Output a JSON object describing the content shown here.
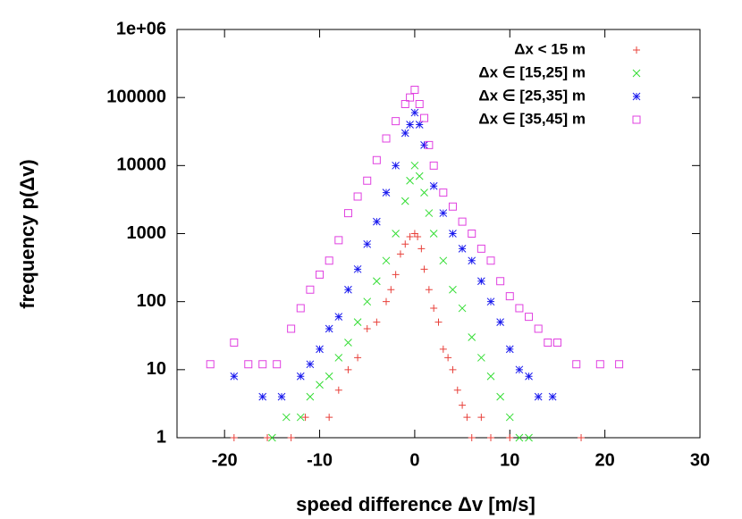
{
  "chart_data": {
    "type": "scatter",
    "x_label": "speed difference Δv [m/s]",
    "y_label": "frequency p(Δv)",
    "log_y": true,
    "legend": "top-right",
    "xlim": [
      -25,
      30
    ],
    "xticks": [
      -20,
      -10,
      0,
      10,
      20,
      30
    ],
    "ylim": [
      1,
      1000000
    ],
    "yticks": [
      1,
      10,
      100,
      1000,
      10000,
      100000,
      {
        "value": 1000000,
        "label": "1e+06"
      }
    ],
    "series": [
      {
        "name": "Δx < 15 m",
        "color": "#e8403a",
        "marker": "plus",
        "x": [
          -19,
          -15.5,
          -13,
          -11.5,
          -9,
          -8,
          -7,
          -6,
          -5,
          -4,
          -3,
          -2.5,
          -2,
          -1.5,
          -1,
          -0.5,
          0,
          0.3,
          0.7,
          1,
          1.5,
          2,
          2.5,
          3,
          3.5,
          4,
          4.5,
          5,
          5.5,
          6,
          7,
          8,
          10,
          17.5
        ],
        "values": [
          1,
          1,
          1,
          2,
          2,
          5,
          10,
          15,
          40,
          50,
          100,
          150,
          250,
          500,
          700,
          900,
          1000,
          900,
          600,
          300,
          150,
          80,
          50,
          20,
          15,
          10,
          5,
          3,
          2,
          1,
          2,
          1,
          1,
          1
        ]
      },
      {
        "name": "Δx ∈ [15,25] m",
        "color": "#33dd33",
        "marker": "cross",
        "x": [
          -15,
          -13.5,
          -12,
          -11,
          -10,
          -9,
          -8,
          -7,
          -6,
          -5,
          -4,
          -3,
          -2,
          -1,
          -0.5,
          0,
          0.5,
          1,
          1.5,
          2,
          3,
          4,
          5,
          6,
          7,
          8,
          9,
          10,
          11,
          12
        ],
        "values": [
          1,
          2,
          2,
          4,
          6,
          8,
          15,
          25,
          50,
          100,
          200,
          400,
          1000,
          3000,
          6000,
          10000,
          7000,
          4000,
          2000,
          1000,
          400,
          150,
          80,
          30,
          15,
          8,
          4,
          2,
          1,
          1
        ]
      },
      {
        "name": "Δx ∈ [25,35] m",
        "color": "#1a1aee",
        "marker": "star",
        "x": [
          -19,
          -16,
          -14,
          -12,
          -11,
          -10,
          -9,
          -8,
          -7,
          -6,
          -5,
          -4,
          -3,
          -2,
          -1,
          -0.5,
          0,
          0.5,
          1,
          2,
          3,
          4,
          5,
          6,
          7,
          8,
          9,
          10,
          11,
          12,
          13,
          14.5
        ],
        "values": [
          8,
          4,
          4,
          8,
          12,
          20,
          40,
          60,
          150,
          300,
          700,
          1500,
          4000,
          10000,
          30000,
          40000,
          60000,
          40000,
          20000,
          5000,
          2000,
          1000,
          600,
          400,
          200,
          100,
          50,
          20,
          10,
          8,
          4,
          4
        ]
      },
      {
        "name": "Δx ∈ [35,45] m",
        "color": "#e040e0",
        "marker": "square",
        "x": [
          -21.5,
          -19,
          -17.5,
          -16,
          -14.5,
          -13,
          -12,
          -11,
          -10,
          -9,
          -8,
          -7,
          -6,
          -5,
          -4,
          -3,
          -2,
          -1,
          -0.5,
          0,
          0.5,
          1,
          1.5,
          2,
          3,
          4,
          5,
          6,
          7,
          8,
          9,
          10,
          11,
          12,
          13,
          14,
          15,
          17,
          19.5,
          21.5
        ],
        "values": [
          12,
          25,
          12,
          12,
          12,
          40,
          80,
          150,
          250,
          400,
          800,
          2000,
          3500,
          6000,
          12000,
          25000,
          45000,
          80000,
          100000,
          130000,
          80000,
          50000,
          20000,
          10000,
          4000,
          2500,
          1500,
          1000,
          600,
          400,
          200,
          120,
          80,
          60,
          40,
          25,
          25,
          12,
          12,
          12
        ]
      }
    ]
  }
}
